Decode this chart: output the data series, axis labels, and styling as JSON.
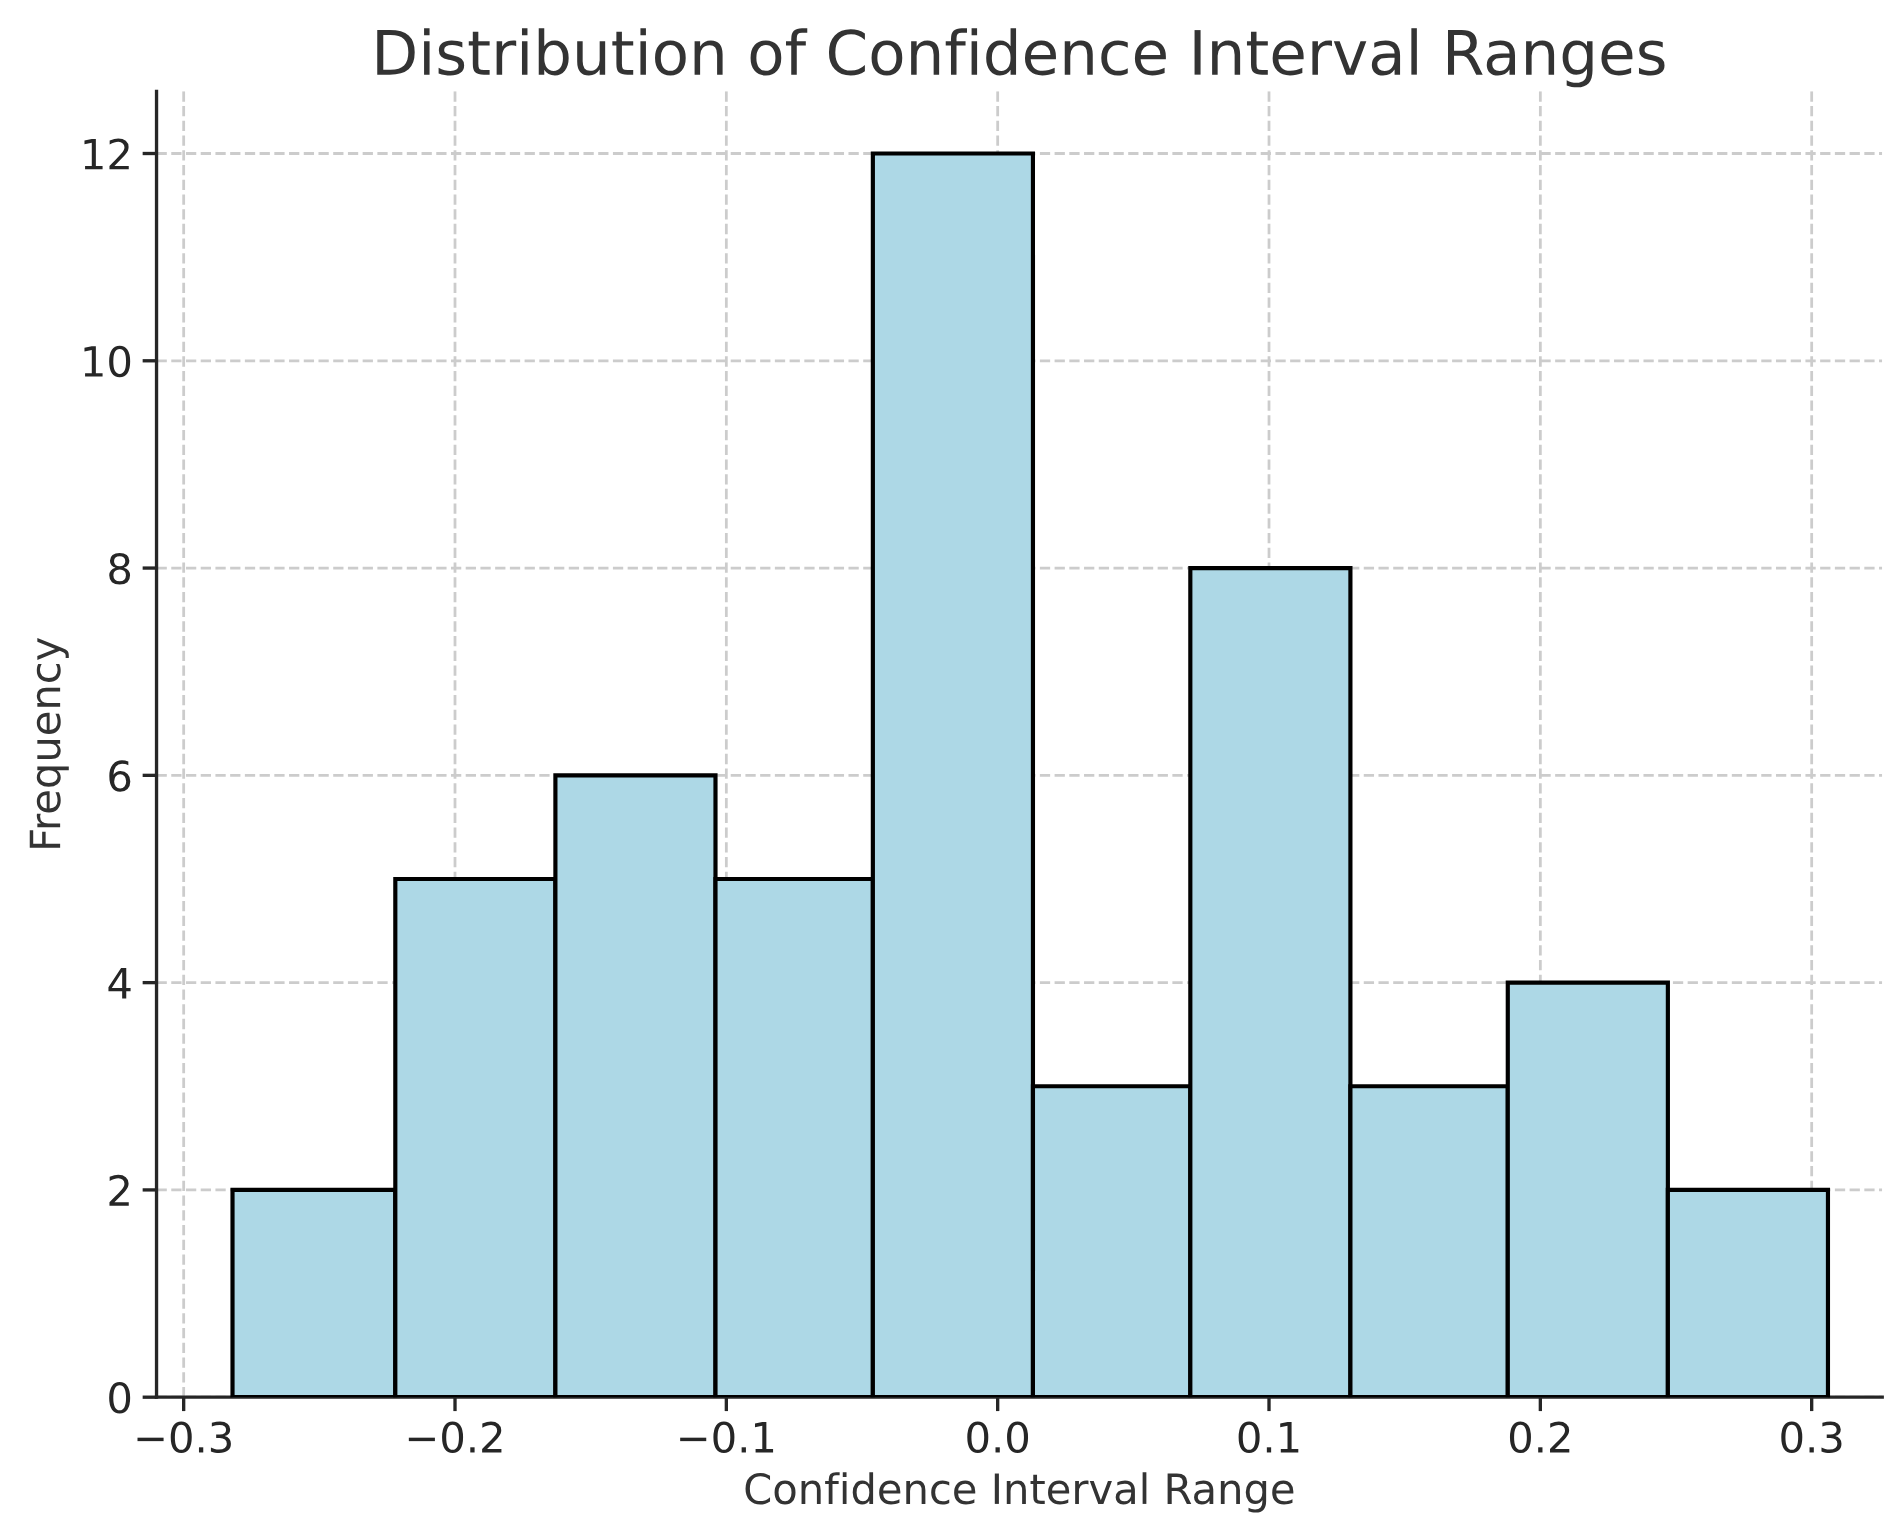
{
  "chart_data": {
    "type": "histogram",
    "title": "Distribution of Confidence Interval Ranges",
    "xlabel": "Confidence Interval Range",
    "ylabel": "Frequency",
    "bins": [
      -0.282,
      -0.222,
      -0.163,
      -0.104,
      -0.046,
      0.013,
      0.071,
      0.13,
      0.188,
      0.247,
      0.306
    ],
    "values": [
      2,
      5,
      6,
      5,
      12,
      3,
      8,
      3,
      4,
      2
    ],
    "color": "#add8e6",
    "xlim": [
      -0.31,
      0.326
    ],
    "ylim": [
      0,
      12.6
    ],
    "xticks": [
      {
        "value": -0.3,
        "label": "−0.3"
      },
      {
        "value": -0.2,
        "label": "−0.2"
      },
      {
        "value": -0.1,
        "label": "−0.1"
      },
      {
        "value": 0,
        "label": "0.0"
      },
      0.1,
      0.2,
      0.3
    ],
    "yticks": [
      0,
      2,
      4,
      6,
      8,
      10,
      12
    ],
    "grid": true
  }
}
